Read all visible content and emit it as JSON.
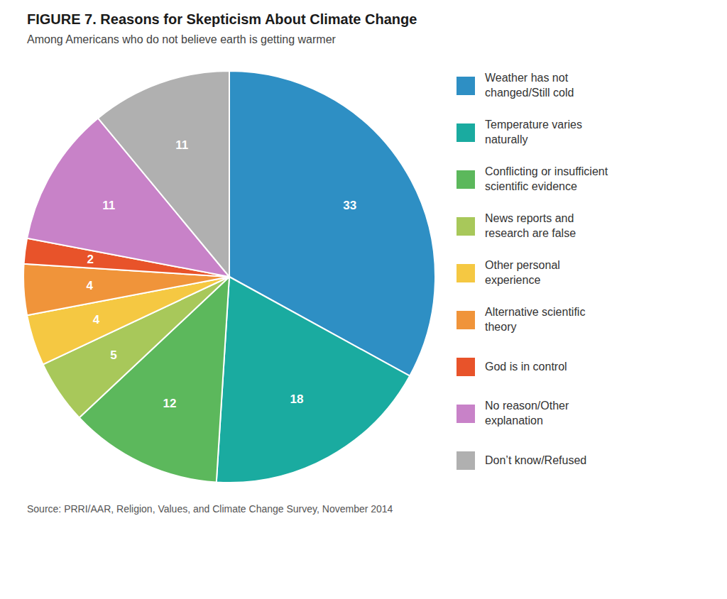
{
  "chart_data": {
    "type": "pie",
    "title": "FIGURE 7.  Reasons for Skepticism About Climate Change",
    "subtitle": "Among Americans who do not believe earth is getting warmer",
    "source": "Source: PRRI/AAR, Religion, Values, and Climate Change Survey, November 2014",
    "categories": [
      "Weather has not\nchanged/Still cold",
      "Temperature varies\nnaturally",
      "Conflicting or insufficient\nscientific evidence",
      "News reports and\nresearch are false",
      "Other personal\nexperience",
      "Alternative scientific\ntheory",
      "God is in control",
      "No reason/Other\nexplanation",
      "Don’t know/Refused"
    ],
    "values": [
      33,
      18,
      12,
      5,
      4,
      4,
      2,
      11,
      11
    ],
    "colors": [
      "#2e8fc4",
      "#1aaba0",
      "#5cb85c",
      "#a8c85a",
      "#f5c842",
      "#f0943a",
      "#e8532a",
      "#c882c8",
      "#b0b0b0"
    ],
    "data_labels": true,
    "legend": "right"
  }
}
